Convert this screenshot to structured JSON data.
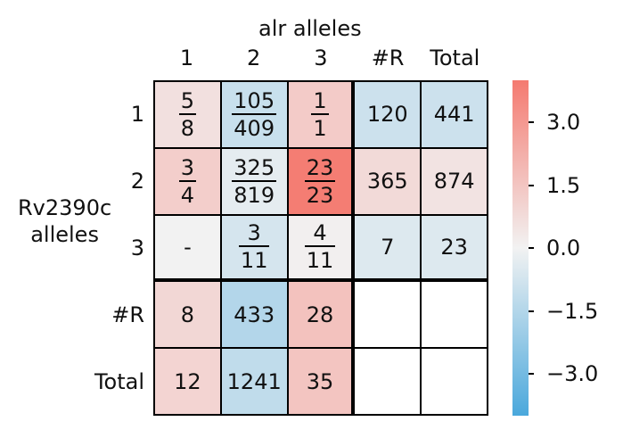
{
  "chart_data": {
    "type": "heatmap",
    "title": "alr alleles",
    "ylabel": "Rv2390c\nalleles",
    "col_labels": [
      "1",
      "2",
      "3",
      "#R",
      "Total"
    ],
    "row_labels": [
      "1",
      "2",
      "3",
      "#R",
      "Total"
    ],
    "cells": [
      [
        {
          "num": "5",
          "den": "8"
        },
        {
          "num": "105",
          "den": "409"
        },
        {
          "num": "1",
          "den": "1"
        },
        "120",
        "441"
      ],
      [
        {
          "num": "3",
          "den": "4"
        },
        {
          "num": "325",
          "den": "819"
        },
        {
          "num": "23",
          "den": "23"
        },
        "365",
        "874"
      ],
      [
        "-",
        {
          "num": "3",
          "den": "11"
        },
        {
          "num": "4",
          "den": "11"
        },
        "7",
        "23"
      ],
      [
        "8",
        "433",
        "28",
        "",
        ""
      ],
      [
        "12",
        "1241",
        "35",
        "",
        ""
      ]
    ],
    "values": [
      [
        0.6,
        -1.0,
        1.3,
        -0.9,
        -0.9
      ],
      [
        1.2,
        -0.3,
        3.9,
        0.8,
        0.5
      ],
      [
        0.0,
        -0.7,
        0.1,
        -0.5,
        -0.5
      ],
      [
        0.9,
        -1.5,
        1.6,
        null,
        null
      ],
      [
        1.0,
        -1.2,
        1.5,
        null,
        null
      ]
    ],
    "colorbar": {
      "range": [
        -4.0,
        4.0
      ],
      "ticks": [
        3.0,
        1.5,
        0.0,
        -1.5,
        -3.0
      ],
      "tick_labels": [
        "3.0",
        "1.5",
        "0.0",
        "−1.5",
        "−3.0"
      ],
      "colors": {
        "neg": "#4aa8dc",
        "mid": "#f2f2f2",
        "pos": "#f47a70"
      }
    }
  }
}
